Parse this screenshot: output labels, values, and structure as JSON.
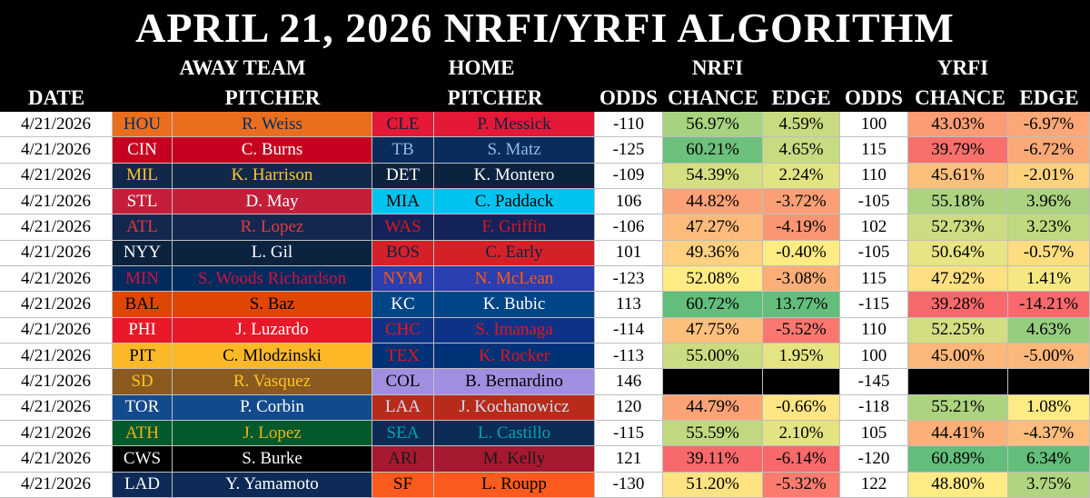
{
  "title": "APRIL 21, 2026 NRFI/YRFI ALGORITHM",
  "header": {
    "groups": [
      "AWAY TEAM",
      "HOME",
      "NRFI",
      "YRFI"
    ],
    "columns": [
      "DATE",
      "PITCHER",
      "PITCHER",
      "ODDS",
      "CHANCE",
      "EDGE",
      "ODDS",
      "CHANCE",
      "EDGE"
    ]
  },
  "table": {
    "rows": [
      [
        "4/21/2026",
        "HOU",
        "R. Weiss",
        "CLE",
        "P. Messick",
        "-110",
        "56.97%",
        "4.59%",
        "100",
        "43.03%",
        "-6.97%"
      ],
      [
        "4/21/2026",
        "CIN",
        "C. Burns",
        "TB",
        "S. Matz",
        "-125",
        "60.21%",
        "4.65%",
        "115",
        "39.79%",
        "-6.72%"
      ],
      [
        "4/21/2026",
        "MIL",
        "K. Harrison",
        "DET",
        "K. Montero",
        "-109",
        "54.39%",
        "2.24%",
        "110",
        "45.61%",
        "-2.01%"
      ],
      [
        "4/21/2026",
        "STL",
        "D. May",
        "MIA",
        "C. Paddack",
        "106",
        "44.82%",
        "-3.72%",
        "-105",
        "55.18%",
        "3.96%"
      ],
      [
        "4/21/2026",
        "ATL",
        "R. Lopez",
        "WAS",
        "F. Griffin",
        "-106",
        "47.27%",
        "-4.19%",
        "102",
        "52.73%",
        "3.23%"
      ],
      [
        "4/21/2026",
        "NYY",
        "L. Gil",
        "BOS",
        "C. Early",
        "101",
        "49.36%",
        "-0.40%",
        "-105",
        "50.64%",
        "-0.57%"
      ],
      [
        "4/21/2026",
        "MIN",
        "S. Woods Richardson",
        "NYM",
        "N. McLean",
        "-123",
        "52.08%",
        "-3.08%",
        "115",
        "47.92%",
        "1.41%"
      ],
      [
        "4/21/2026",
        "BAL",
        "S. Baz",
        "KC",
        "K. Bubic",
        "113",
        "60.72%",
        "13.77%",
        "-115",
        "39.28%",
        "-14.21%"
      ],
      [
        "4/21/2026",
        "PHI",
        "J. Luzardo",
        "CHC",
        "S. Imanaga",
        "-114",
        "47.75%",
        "-5.52%",
        "110",
        "52.25%",
        "4.63%"
      ],
      [
        "4/21/2026",
        "PIT",
        "C. Mlodzinski",
        "TEX",
        "K. Rocker",
        "-113",
        "55.00%",
        "1.95%",
        "100",
        "45.00%",
        "-5.00%"
      ],
      [
        "4/21/2026",
        "SD",
        "R. Vasquez",
        "COL",
        "B. Bernardino",
        "146",
        null,
        null,
        "-145",
        null,
        null
      ],
      [
        "4/21/2026",
        "TOR",
        "P. Corbin",
        "LAA",
        "J. Kochanowicz",
        "120",
        "44.79%",
        "-0.66%",
        "-118",
        "55.21%",
        "1.08%"
      ],
      [
        "4/21/2026",
        "ATH",
        "J. Lopez",
        "SEA",
        "L. Castillo",
        "-115",
        "55.59%",
        "2.10%",
        "105",
        "44.41%",
        "-4.37%"
      ],
      [
        "4/21/2026",
        "CWS",
        "S. Burke",
        "ARI",
        "M. Kelly",
        "121",
        "39.11%",
        "-6.14%",
        "-120",
        "60.89%",
        "6.34%"
      ],
      [
        "4/21/2026",
        "LAD",
        "Y. Yamamoto",
        "SF",
        "L. Roupp",
        "-130",
        "51.20%",
        "-5.32%",
        "122",
        "48.80%",
        "3.75%"
      ]
    ]
  }
}
